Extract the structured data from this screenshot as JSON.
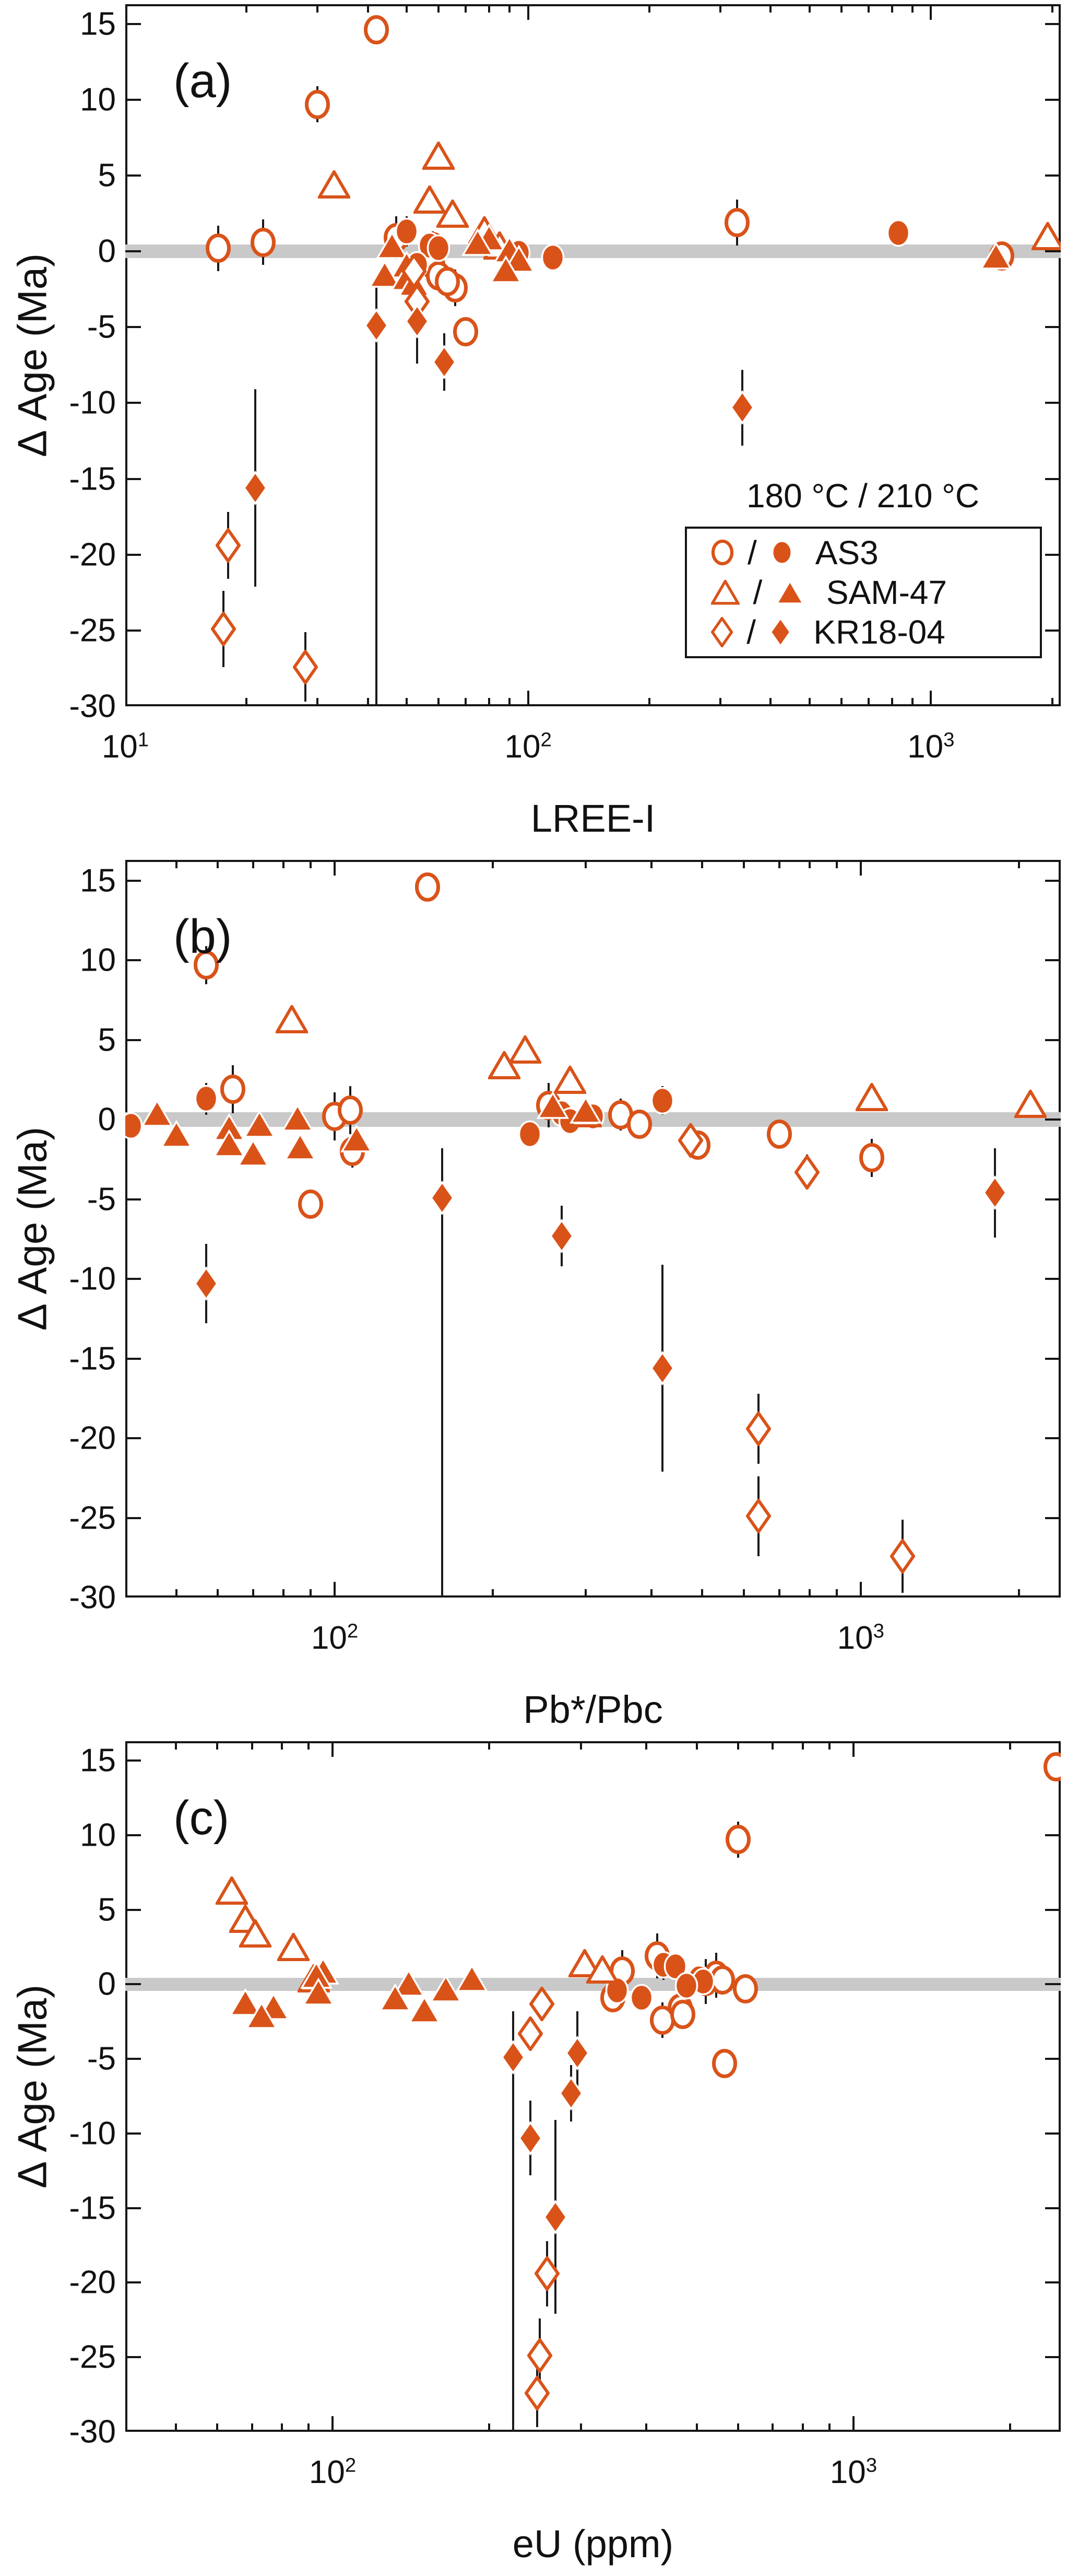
{
  "figure": {
    "background": "#ffffff"
  },
  "legend": {
    "title": "180 °C / 210 °C",
    "separator": "/",
    "items": [
      {
        "label": "AS3",
        "shape": "circle"
      },
      {
        "label": "SAM-47",
        "shape": "triangle"
      },
      {
        "label": "KR18-04",
        "shape": "diamond"
      }
    ]
  },
  "chart_data": {
    "type": "scatter",
    "ylabel": "Δ Age (Ma)",
    "ylim": [
      -30,
      16.3
    ],
    "yticks": [
      -30,
      -25,
      -20,
      -15,
      -10,
      -5,
      0,
      5,
      10,
      15
    ],
    "grid": false,
    "xscale": "log",
    "marker_color": "#D95319",
    "errorbar_color": "#1a1a1a",
    "zero_band": {
      "center": 0,
      "half_width": 0.45,
      "color": "#c9c9c9"
    },
    "open_marker_meaning": "180 °C",
    "filled_marker_meaning": "210 °C",
    "panels": [
      {
        "letter": "(a)",
        "xlabel": "LREE-I",
        "xkey": "lree",
        "xlim": [
          10,
          2100
        ],
        "xticks": [
          {
            "v": 10,
            "base": "10",
            "exp": "1"
          },
          {
            "v": 100,
            "base": "10",
            "exp": "2"
          },
          {
            "v": 1000,
            "base": "10",
            "exp": "3"
          }
        ]
      },
      {
        "letter": "(b)",
        "xlabel": "Pb*/Pbc",
        "xkey": "pb",
        "xlim": [
          40,
          2400
        ],
        "xticks": [
          {
            "v": 100,
            "base": "10",
            "exp": "2"
          },
          {
            "v": 1000,
            "base": "10",
            "exp": "3"
          }
        ]
      },
      {
        "letter": "(c)",
        "xlabel": "eU (ppm)",
        "xkey": "eu",
        "xlim": [
          40,
          2500
        ],
        "xticks": [
          {
            "v": 100,
            "base": "10",
            "exp": "2"
          },
          {
            "v": 1000,
            "base": "10",
            "exp": "3"
          }
        ]
      }
    ],
    "samples": [
      {
        "series": "AS3",
        "filled": false,
        "d": 14.6,
        "e": 0.8,
        "lree": 42,
        "pb": 150,
        "eu": 2450
      },
      {
        "series": "AS3",
        "filled": false,
        "d": 9.7,
        "e": 1.2,
        "lree": 30,
        "pb": 57,
        "eu": 600
      },
      {
        "series": "AS3",
        "filled": false,
        "d": 1.9,
        "e": 1.5,
        "lree": 330,
        "pb": 64,
        "eu": 420
      },
      {
        "series": "AS3",
        "filled": false,
        "d": 0.9,
        "e": 1.4,
        "lree": 47,
        "pb": 255,
        "eu": 360
      },
      {
        "series": "AS3",
        "filled": false,
        "d": 0.2,
        "e": 1.5,
        "lree": 17,
        "pb": 100,
        "eu": 520
      },
      {
        "series": "AS3",
        "filled": false,
        "d": 0.6,
        "e": 1.5,
        "lree": 22,
        "pb": 107,
        "eu": 545
      },
      {
        "series": "AS3",
        "filled": false,
        "d": 0.3,
        "e": 1.0,
        "lree": 58,
        "pb": 350,
        "eu": 560
      },
      {
        "series": "AS3",
        "filled": false,
        "d": -0.3,
        "e": 0.6,
        "lree": 1500,
        "pb": 380,
        "eu": 620
      },
      {
        "series": "AS3",
        "filled": false,
        "d": -0.9,
        "e": 0.7,
        "lree": 58,
        "pb": 700,
        "eu": 345
      },
      {
        "series": "AS3",
        "filled": false,
        "d": -1.6,
        "e": 0.9,
        "lree": 60,
        "pb": 490,
        "eu": 465
      },
      {
        "series": "AS3",
        "filled": false,
        "d": -2.4,
        "e": 1.2,
        "lree": 66,
        "pb": 1050,
        "eu": 430
      },
      {
        "series": "AS3",
        "filled": false,
        "d": -2.0,
        "e": 1.0,
        "lree": 63,
        "pb": 108,
        "eu": 470
      },
      {
        "series": "AS3",
        "filled": false,
        "d": -5.3,
        "e": 0.9,
        "lree": 70,
        "pb": 90,
        "eu": 565
      },
      {
        "series": "AS3",
        "filled": true,
        "d": 1.3,
        "e": 1.0,
        "lree": 50,
        "pb": 57,
        "eu": 432
      },
      {
        "series": "AS3",
        "filled": true,
        "d": 1.2,
        "e": 0.9,
        "lree": 830,
        "pb": 420,
        "eu": 455
      },
      {
        "series": "AS3",
        "filled": true,
        "d": 0.4,
        "e": 0.6,
        "lree": 57,
        "pb": 270,
        "eu": 505
      },
      {
        "series": "AS3",
        "filled": true,
        "d": 0.2,
        "e": 0.5,
        "lree": 60,
        "pb": 310,
        "eu": 515
      },
      {
        "series": "AS3",
        "filled": true,
        "d": -0.1,
        "e": 0.6,
        "lree": 95,
        "pb": 280,
        "eu": 478
      },
      {
        "series": "AS3",
        "filled": true,
        "d": -0.4,
        "e": 0.5,
        "lree": 115,
        "pb": 41,
        "eu": 352
      },
      {
        "series": "AS3",
        "filled": true,
        "d": -0.9,
        "e": 0.6,
        "lree": 53,
        "pb": 235,
        "eu": 392
      },
      {
        "series": "SAM-47",
        "filled": false,
        "d": 6.3,
        "e": 0.5,
        "lree": 60,
        "pb": 83,
        "eu": 64
      },
      {
        "series": "SAM-47",
        "filled": false,
        "d": 4.4,
        "e": 0.6,
        "lree": 33,
        "pb": 230,
        "eu": 68
      },
      {
        "series": "SAM-47",
        "filled": false,
        "d": 3.4,
        "e": 0.5,
        "lree": 57,
        "pb": 210,
        "eu": 71
      },
      {
        "series": "SAM-47",
        "filled": false,
        "d": 2.5,
        "e": 0.5,
        "lree": 65,
        "pb": 280,
        "eu": 84
      },
      {
        "series": "SAM-47",
        "filled": false,
        "d": 1.4,
        "e": 0.6,
        "lree": 78,
        "pb": 1050,
        "eu": 305
      },
      {
        "series": "SAM-47",
        "filled": false,
        "d": 1.0,
        "e": 0.5,
        "lree": 1950,
        "pb": 2100,
        "eu": 330
      },
      {
        "series": "SAM-47",
        "filled": false,
        "d": 0.4,
        "e": 0.4,
        "lree": 85,
        "pb": 300,
        "eu": 92
      },
      {
        "series": "SAM-47",
        "filled": true,
        "d": 0.9,
        "e": 0.5,
        "lree": 80,
        "pb": 260,
        "eu": 96
      },
      {
        "series": "SAM-47",
        "filled": true,
        "d": 0.6,
        "e": 0.5,
        "lree": 75,
        "pb": 300,
        "eu": 93
      },
      {
        "series": "SAM-47",
        "filled": true,
        "d": 0.4,
        "e": 0.4,
        "lree": 46,
        "pb": 46,
        "eu": 185
      },
      {
        "series": "SAM-47",
        "filled": true,
        "d": 0.1,
        "e": 0.4,
        "lree": 90,
        "pb": 85,
        "eu": 140
      },
      {
        "series": "SAM-47",
        "filled": true,
        "d": -0.3,
        "e": 0.4,
        "lree": 1450,
        "pb": 72,
        "eu": 165
      },
      {
        "series": "SAM-47",
        "filled": true,
        "d": -0.5,
        "e": 0.5,
        "lree": 95,
        "pb": 63,
        "eu": 94
      },
      {
        "series": "SAM-47",
        "filled": true,
        "d": -0.9,
        "e": 0.5,
        "lree": 50,
        "pb": 50,
        "eu": 132
      },
      {
        "series": "SAM-47",
        "filled": true,
        "d": -1.2,
        "e": 0.6,
        "lree": 88,
        "pb": 110,
        "eu": 68
      },
      {
        "series": "SAM-47",
        "filled": true,
        "d": -1.5,
        "e": 0.7,
        "lree": 44,
        "pb": 63,
        "eu": 77
      },
      {
        "series": "SAM-47",
        "filled": true,
        "d": -1.7,
        "e": 0.6,
        "lree": 50,
        "pb": 86,
        "eu": 150
      },
      {
        "series": "SAM-47",
        "filled": true,
        "d": -2.1,
        "e": 0.5,
        "lree": 52,
        "pb": 70,
        "eu": 73
      },
      {
        "series": "KR18-04",
        "filled": false,
        "d": -1.3,
        "e": 0.9,
        "lree": 52,
        "pb": 475,
        "eu": 252
      },
      {
        "series": "KR18-04",
        "filled": false,
        "d": -3.3,
        "e": 1.1,
        "lree": 53,
        "pb": 790,
        "eu": 240
      },
      {
        "series": "KR18-04",
        "filled": false,
        "d": -19.4,
        "e": 2.2,
        "lree": 18,
        "pb": 640,
        "eu": 258
      },
      {
        "series": "KR18-04",
        "filled": false,
        "d": -24.9,
        "e": 2.5,
        "lree": 17.5,
        "pb": 640,
        "eu": 250
      },
      {
        "series": "KR18-04",
        "filled": false,
        "d": -27.4,
        "e": 2.3,
        "lree": 28,
        "pb": 1200,
        "eu": 247
      },
      {
        "series": "KR18-04",
        "filled": true,
        "d": -4.9,
        "elo": 26,
        "ehi": 3.1,
        "lree": 42,
        "pb": 160,
        "eu": 222
      },
      {
        "series": "KR18-04",
        "filled": true,
        "d": -4.6,
        "e": 2.8,
        "lree": 53,
        "pb": 1800,
        "eu": 295
      },
      {
        "series": "KR18-04",
        "filled": true,
        "d": -7.3,
        "e": 1.9,
        "lree": 62,
        "pb": 270,
        "eu": 287
      },
      {
        "series": "KR18-04",
        "filled": true,
        "d": -10.3,
        "e": 2.5,
        "lree": 340,
        "pb": 57,
        "eu": 240
      },
      {
        "series": "KR18-04",
        "filled": true,
        "d": -15.6,
        "e": 6.5,
        "lree": 21,
        "pb": 420,
        "eu": 268
      }
    ]
  }
}
